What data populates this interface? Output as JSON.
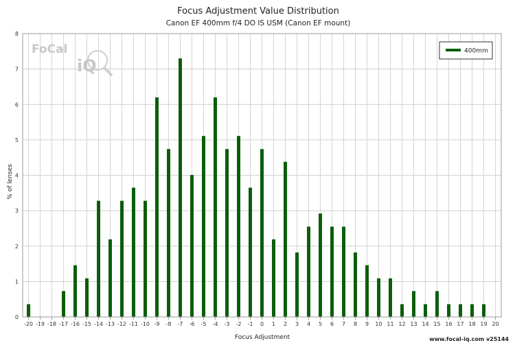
{
  "chart_data": {
    "type": "bar",
    "title": "Focus Adjustment Value Distribution",
    "subtitle": "Canon EF 400mm f/4 DO IS USM (Canon EF mount)",
    "xlabel": "Focus Adjustment",
    "ylabel": "% of lenses",
    "ylim": [
      0,
      8
    ],
    "yticks": [
      "0",
      "1",
      "2",
      "3",
      "4",
      "5",
      "6",
      "7",
      "8"
    ],
    "categories": [
      "-20",
      "-19",
      "-18",
      "-17",
      "-16",
      "-15",
      "-14",
      "-13",
      "-12",
      "-11",
      "-10",
      "-9",
      "-8",
      "-7",
      "-6",
      "-5",
      "-4",
      "-3",
      "-2",
      "-1",
      "0",
      "1",
      "2",
      "3",
      "4",
      "5",
      "6",
      "7",
      "8",
      "9",
      "10",
      "11",
      "12",
      "13",
      "14",
      "15",
      "16",
      "17",
      "18",
      "19",
      "20"
    ],
    "series": [
      {
        "name": "400mm",
        "color": "#0b5e0b",
        "values": [
          0.36,
          0,
          0,
          0.73,
          1.46,
          1.09,
          3.28,
          2.19,
          3.28,
          3.65,
          3.28,
          6.2,
          4.74,
          7.3,
          4.01,
          5.11,
          6.2,
          4.74,
          5.11,
          3.65,
          4.74,
          2.19,
          4.38,
          1.82,
          2.55,
          2.92,
          2.55,
          2.55,
          1.82,
          1.46,
          1.09,
          1.09,
          0.36,
          0.73,
          0.36,
          0.73,
          0.36,
          0.36,
          0.36,
          0.36,
          0
        ]
      }
    ],
    "grid": true,
    "legend_position": "top-right"
  },
  "logo": {
    "text_left": "FoCal",
    "text_right": "iQ"
  },
  "footer": {
    "text": "www.focal-iq.com  v25144"
  }
}
